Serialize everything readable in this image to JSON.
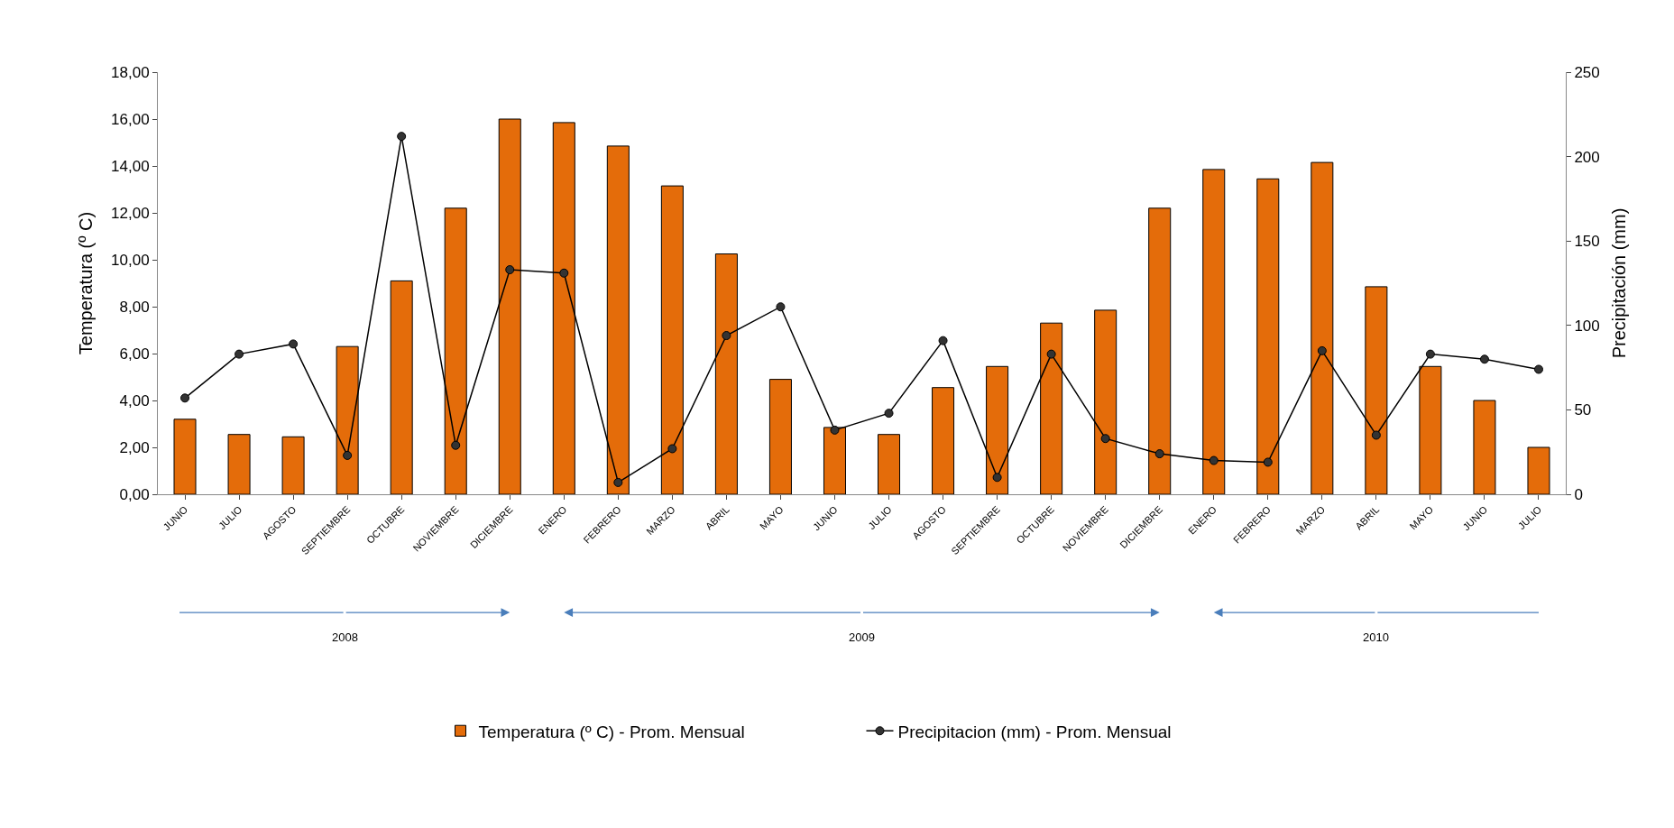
{
  "chart_data": {
    "type": "bar",
    "categories": [
      "JUNIO",
      "JULIO",
      "AGOSTO",
      "SEPTIEMBRE",
      "OCTUBRE",
      "NOVIEMBRE",
      "DICIEMBRE",
      "ENERO",
      "FEBRERO",
      "MARZO",
      "ABRIL",
      "MAYO",
      "JUNIO",
      "JULIO",
      "AGOSTO",
      "SEPTIEMBRE",
      "OCTUBRE",
      "NOVIEMBRE",
      "DICIEMBRE",
      "ENERO",
      "FEBRERO",
      "MARZO",
      "ABRIL",
      "MAYO",
      "JUNIO",
      "JULIO"
    ],
    "series": [
      {
        "name": "Temperatura (º C) - Prom. Mensual",
        "color": "#e46c0a",
        "values": [
          3.2,
          2.55,
          2.45,
          6.3,
          9.1,
          12.2,
          16.0,
          15.85,
          14.85,
          13.15,
          10.25,
          4.9,
          2.85,
          2.55,
          4.55,
          5.45,
          7.3,
          7.85,
          12.2,
          13.85,
          13.45,
          14.15,
          8.85,
          5.45,
          4.0,
          2.0
        ]
      },
      {
        "name": "Precipitacion (mm) - Prom. Mensual",
        "type": "line",
        "axis": "y2",
        "color": "#000000",
        "marker": "circle",
        "values": [
          57,
          83,
          89,
          23,
          212,
          29,
          133,
          131,
          7,
          27,
          94,
          111,
          38,
          48,
          91,
          10,
          83,
          33,
          24,
          20,
          19,
          85,
          35,
          83,
          80,
          74
        ]
      }
    ],
    "ylabel": "Temperatura (º C)",
    "y2label": "Precipitación (mm)",
    "ylim": [
      0,
      18
    ],
    "yticks": [
      {
        "value": 0,
        "label": "0,00"
      },
      {
        "value": 2,
        "label": "2,00"
      },
      {
        "value": 4,
        "label": "4,00"
      },
      {
        "value": 6,
        "label": "6,00"
      },
      {
        "value": 8,
        "label": "8,00"
      },
      {
        "value": 10,
        "label": "10,00"
      },
      {
        "value": 12,
        "label": "12,00"
      },
      {
        "value": 14,
        "label": "14,00"
      },
      {
        "value": 16,
        "label": "16,00"
      },
      {
        "value": 18,
        "label": "18,00"
      }
    ],
    "y2lim": [
      0,
      250
    ],
    "y2ticks": [
      0,
      50,
      100,
      150,
      200,
      250
    ],
    "annotations": [
      "2008",
      "2009",
      "2010"
    ],
    "legend": "bottom"
  }
}
